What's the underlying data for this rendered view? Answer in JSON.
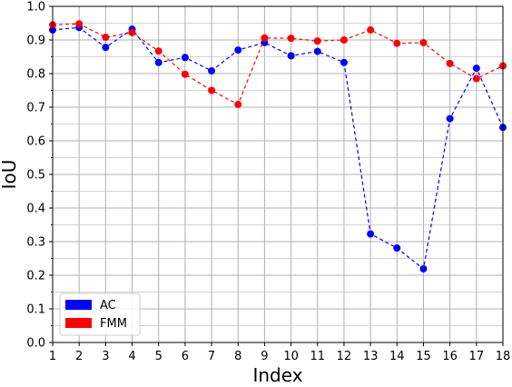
{
  "chart_data": {
    "type": "line",
    "title": "",
    "xlabel": "Index",
    "ylabel": "IoU",
    "xlim": [
      1,
      18
    ],
    "ylim": [
      0.0,
      1.0
    ],
    "x": [
      1,
      2,
      3,
      4,
      5,
      6,
      7,
      8,
      9,
      10,
      11,
      12,
      13,
      14,
      15,
      16,
      17,
      18
    ],
    "x_ticks": [
      "1",
      "2",
      "3",
      "4",
      "5",
      "6",
      "7",
      "8",
      "9",
      "10",
      "11",
      "12",
      "13",
      "14",
      "15",
      "16",
      "17",
      "18"
    ],
    "y_ticks": [
      "0.0",
      "0.1",
      "0.2",
      "0.3",
      "0.4",
      "0.5",
      "0.6",
      "0.7",
      "0.8",
      "0.9",
      "1.0"
    ],
    "grid": true,
    "minor_grid": true,
    "legend_position": "lower-left",
    "series": [
      {
        "name": "AC",
        "color": "#0000ff",
        "line_style": "dashed",
        "marker": "circle",
        "values": [
          0.93,
          0.937,
          0.878,
          0.932,
          0.833,
          0.848,
          0.808,
          0.87,
          0.892,
          0.853,
          0.866,
          0.833,
          0.323,
          0.281,
          0.219,
          0.666,
          0.816,
          0.64
        ]
      },
      {
        "name": "FMM",
        "color": "#ff0000",
        "line_style": "dashed",
        "marker": "circle",
        "values": [
          0.945,
          0.948,
          0.908,
          0.922,
          0.867,
          0.798,
          0.75,
          0.708,
          0.906,
          0.905,
          0.897,
          0.9,
          0.93,
          0.89,
          0.892,
          0.83,
          0.785,
          0.823
        ]
      }
    ]
  }
}
